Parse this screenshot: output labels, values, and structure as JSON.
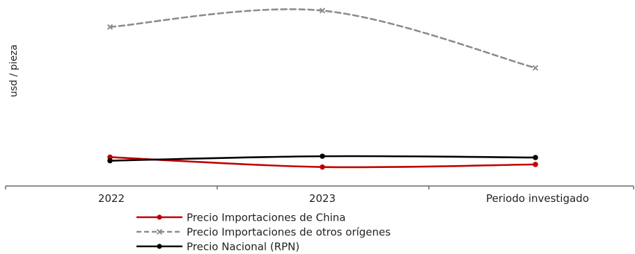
{
  "chart_data": {
    "type": "line",
    "title": "",
    "xlabel": "",
    "ylabel": "usd / pieza",
    "categories": [
      "2022",
      "2023",
      "Periodo investigado"
    ],
    "yaxis_visible": false,
    "ylim": [
      0,
      100
    ],
    "grid": false,
    "legend_position": "bottom",
    "series": [
      {
        "name": "Precio Importaciones de China",
        "values": [
          15.5,
          10.2,
          11.6
        ],
        "color": "#c00000",
        "marker": "circle",
        "line_style": "solid"
      },
      {
        "name": "Precio Importaciones de otros orígenes",
        "values": [
          85.5,
          94.3,
          63.5
        ],
        "color": "#8c8c8c",
        "marker": "x",
        "line_style": "dashed"
      },
      {
        "name": "Precio Nacional (RPN)",
        "values": [
          13.6,
          16.0,
          15.3
        ],
        "color": "#000000",
        "marker": "circle",
        "line_style": "solid"
      }
    ]
  }
}
